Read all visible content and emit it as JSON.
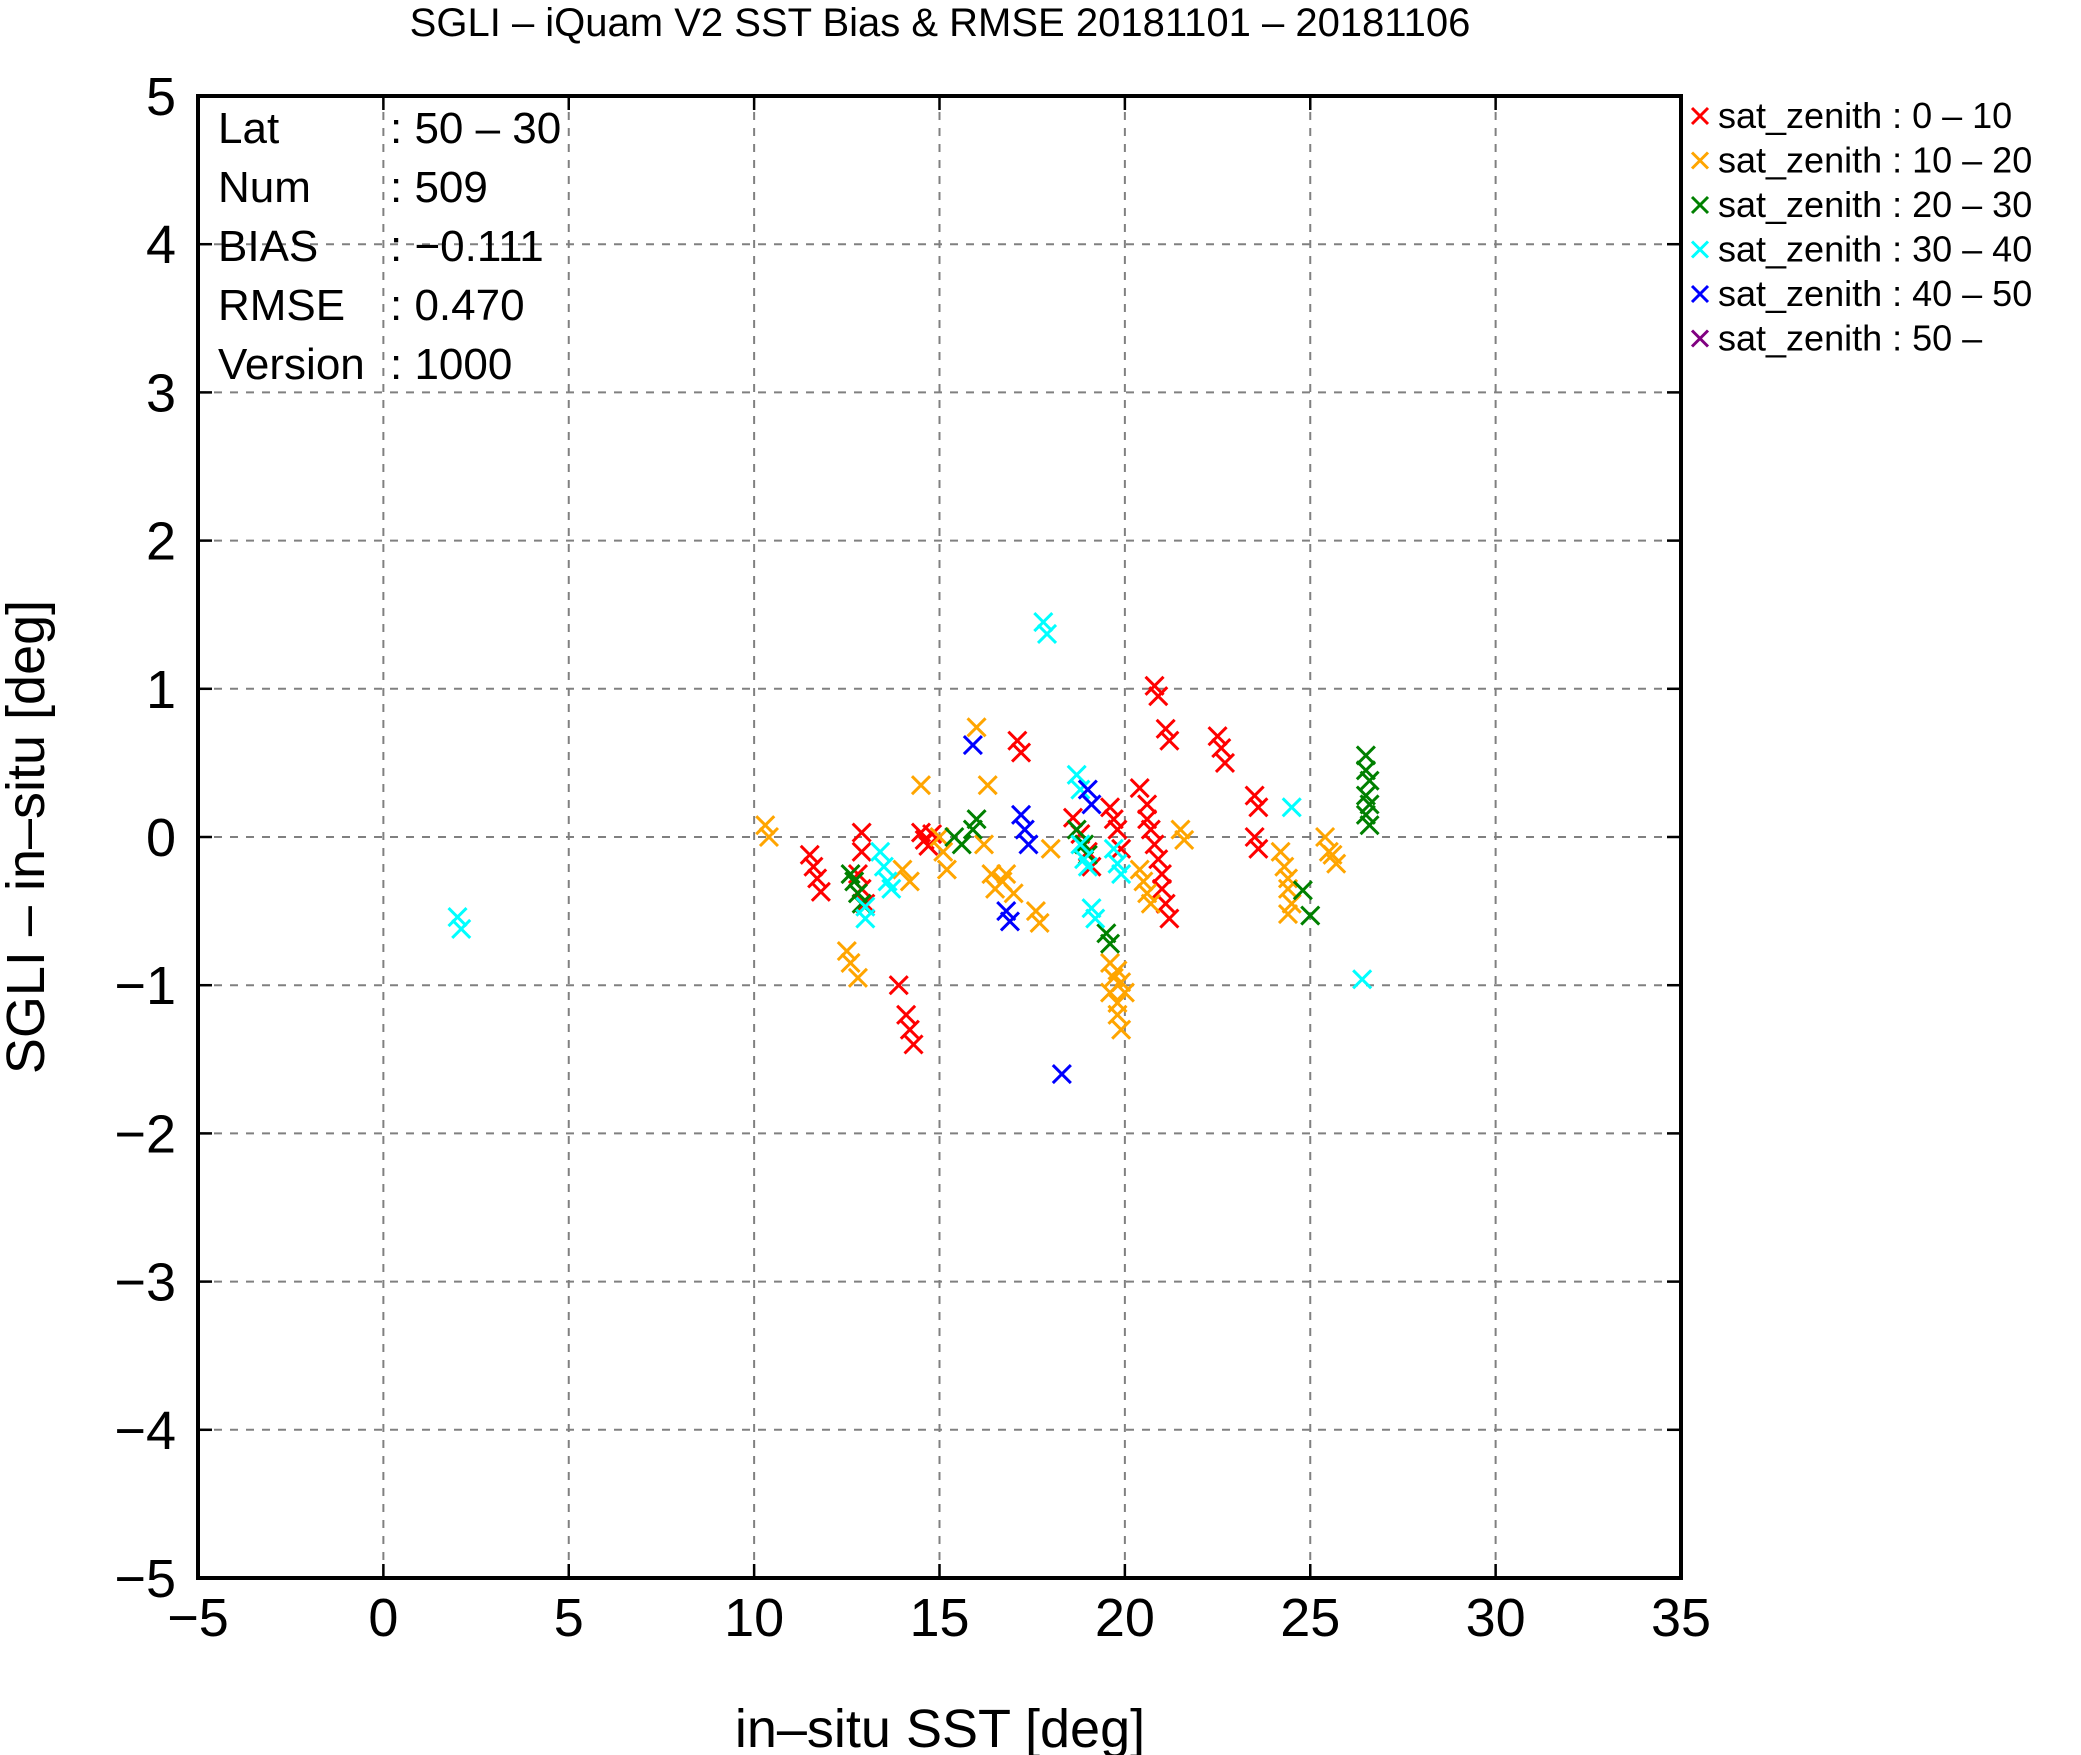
{
  "chart_data": {
    "type": "scatter",
    "title": "SGLI – iQuam V2 SST Bias & RMSE 20181101 – 20181106",
    "xlabel": "in–situ SST [deg]",
    "ylabel": "SGLI – in–situ [deg]",
    "xlim": [
      -5,
      35
    ],
    "ylim": [
      -5,
      5
    ],
    "xticks": [
      -5,
      0,
      5,
      10,
      15,
      20,
      25,
      30,
      35
    ],
    "xtick_labels": [
      "−5",
      "0",
      "5",
      "10",
      "15",
      "20",
      "25",
      "30",
      "35"
    ],
    "yticks": [
      5,
      4,
      3,
      2,
      1,
      0,
      -1,
      -2,
      -3,
      -4,
      -5
    ],
    "ytick_labels": [
      "5",
      "4",
      "3",
      "2",
      "1",
      "0",
      "−1",
      "−2",
      "−3",
      "−4",
      "−5"
    ],
    "grid": true,
    "legend_position": "outside-top-right",
    "marker": "x",
    "stats": [
      {
        "label": "Lat",
        "value": ": 50 – 30"
      },
      {
        "label": "Num",
        "value": ": 509"
      },
      {
        "label": "BIAS",
        "value": ": −0.111"
      },
      {
        "label": "RMSE",
        "value": ": 0.470"
      },
      {
        "label": "Version",
        "value": ": 1000"
      }
    ],
    "series": [
      {
        "name": "sat_zenith :  0 – 10",
        "color": "#ff0000",
        "points": [
          [
            11.5,
            -0.12
          ],
          [
            11.6,
            -0.2
          ],
          [
            11.7,
            -0.28
          ],
          [
            11.8,
            -0.37
          ],
          [
            12.9,
            0.03
          ],
          [
            12.9,
            -0.1
          ],
          [
            12.8,
            -0.25
          ],
          [
            12.9,
            -0.35
          ],
          [
            13.0,
            -0.45
          ],
          [
            13.9,
            -1.0
          ],
          [
            14.1,
            -1.2
          ],
          [
            14.2,
            -1.3
          ],
          [
            14.3,
            -1.4
          ],
          [
            14.5,
            0.03
          ],
          [
            14.6,
            -0.02
          ],
          [
            14.7,
            -0.06
          ],
          [
            14.8,
            0.02
          ],
          [
            17.1,
            0.65
          ],
          [
            17.2,
            0.57
          ],
          [
            18.6,
            0.13
          ],
          [
            18.8,
            0.02
          ],
          [
            19.0,
            -0.1
          ],
          [
            19.1,
            -0.2
          ],
          [
            19.6,
            0.2
          ],
          [
            19.7,
            0.12
          ],
          [
            19.8,
            0.05
          ],
          [
            19.9,
            -0.08
          ],
          [
            20.4,
            0.33
          ],
          [
            20.6,
            0.22
          ],
          [
            20.6,
            0.12
          ],
          [
            20.7,
            0.05
          ],
          [
            20.8,
            1.02
          ],
          [
            20.9,
            0.95
          ],
          [
            21.1,
            0.73
          ],
          [
            21.2,
            0.65
          ],
          [
            20.8,
            -0.05
          ],
          [
            20.9,
            -0.15
          ],
          [
            21.0,
            -0.25
          ],
          [
            21.0,
            -0.35
          ],
          [
            21.1,
            -0.45
          ],
          [
            21.2,
            -0.55
          ],
          [
            22.5,
            0.68
          ],
          [
            22.6,
            0.6
          ],
          [
            22.7,
            0.5
          ],
          [
            23.5,
            0.28
          ],
          [
            23.6,
            0.2
          ],
          [
            23.5,
            0.0
          ],
          [
            23.6,
            -0.08
          ]
        ]
      },
      {
        "name": "sat_zenith : 10 – 20",
        "color": "#ffa500",
        "points": [
          [
            10.3,
            0.08
          ],
          [
            10.4,
            0.0
          ],
          [
            12.5,
            -0.77
          ],
          [
            12.6,
            -0.85
          ],
          [
            12.8,
            -0.95
          ],
          [
            14.0,
            -0.22
          ],
          [
            14.2,
            -0.3
          ],
          [
            14.5,
            0.35
          ],
          [
            15.0,
            0.0
          ],
          [
            15.1,
            -0.1
          ],
          [
            15.2,
            -0.22
          ],
          [
            16.0,
            0.74
          ],
          [
            16.2,
            -0.05
          ],
          [
            16.3,
            0.35
          ],
          [
            16.4,
            -0.25
          ],
          [
            16.5,
            -0.35
          ],
          [
            16.7,
            -0.3
          ],
          [
            16.8,
            -0.25
          ],
          [
            17.0,
            -0.38
          ],
          [
            17.6,
            -0.5
          ],
          [
            17.7,
            -0.58
          ],
          [
            18.0,
            -0.08
          ],
          [
            19.6,
            -0.85
          ],
          [
            19.7,
            -0.95
          ],
          [
            19.6,
            -1.05
          ],
          [
            19.8,
            -1.12
          ],
          [
            19.8,
            -1.2
          ],
          [
            19.9,
            -1.3
          ],
          [
            19.9,
            -0.98
          ],
          [
            20.0,
            -1.05
          ],
          [
            19.8,
            -0.9
          ],
          [
            20.4,
            -0.22
          ],
          [
            20.5,
            -0.3
          ],
          [
            20.6,
            -0.38
          ],
          [
            20.7,
            -0.45
          ],
          [
            21.5,
            0.05
          ],
          [
            21.6,
            -0.02
          ],
          [
            24.2,
            -0.1
          ],
          [
            24.3,
            -0.2
          ],
          [
            24.4,
            -0.28
          ],
          [
            24.4,
            -0.35
          ],
          [
            24.5,
            -0.45
          ],
          [
            24.4,
            -0.52
          ],
          [
            25.4,
            0.0
          ],
          [
            25.5,
            -0.1
          ],
          [
            25.6,
            -0.12
          ],
          [
            25.7,
            -0.18
          ]
        ]
      },
      {
        "name": "sat_zenith : 20 – 30",
        "color": "#008000",
        "points": [
          [
            12.6,
            -0.25
          ],
          [
            12.7,
            -0.3
          ],
          [
            12.8,
            -0.38
          ],
          [
            12.9,
            -0.45
          ],
          [
            15.4,
            0.0
          ],
          [
            15.6,
            -0.05
          ],
          [
            15.9,
            0.05
          ],
          [
            16.0,
            0.12
          ],
          [
            18.7,
            0.05
          ],
          [
            18.9,
            -0.05
          ],
          [
            19.0,
            -0.12
          ],
          [
            19.5,
            -0.65
          ],
          [
            19.6,
            -0.72
          ],
          [
            24.8,
            -0.36
          ],
          [
            25.0,
            -0.53
          ],
          [
            26.5,
            0.55
          ],
          [
            26.5,
            0.45
          ],
          [
            26.6,
            0.38
          ],
          [
            26.5,
            0.28
          ],
          [
            26.6,
            0.22
          ],
          [
            26.5,
            0.15
          ],
          [
            26.6,
            0.08
          ]
        ]
      },
      {
        "name": "sat_zenith : 30 – 40",
        "color": "#00ffff",
        "points": [
          [
            2.0,
            -0.54
          ],
          [
            2.1,
            -0.62
          ],
          [
            13.0,
            -0.47
          ],
          [
            13.0,
            -0.55
          ],
          [
            13.4,
            -0.1
          ],
          [
            13.5,
            -0.2
          ],
          [
            13.6,
            -0.3
          ],
          [
            13.7,
            -0.35
          ],
          [
            17.8,
            1.45
          ],
          [
            17.9,
            1.37
          ],
          [
            18.7,
            0.42
          ],
          [
            18.8,
            0.32
          ],
          [
            18.8,
            -0.05
          ],
          [
            18.9,
            -0.15
          ],
          [
            19.0,
            -0.2
          ],
          [
            19.1,
            -0.48
          ],
          [
            19.2,
            -0.55
          ],
          [
            19.7,
            -0.08
          ],
          [
            19.8,
            -0.18
          ],
          [
            19.9,
            -0.25
          ],
          [
            24.5,
            0.2
          ],
          [
            26.4,
            -0.96
          ]
        ]
      },
      {
        "name": "sat_zenith : 40 – 50",
        "color": "#0000ff",
        "points": [
          [
            15.9,
            0.62
          ],
          [
            16.8,
            -0.5
          ],
          [
            16.9,
            -0.57
          ],
          [
            17.2,
            0.15
          ],
          [
            17.3,
            0.05
          ],
          [
            17.4,
            -0.05
          ],
          [
            18.3,
            -1.6
          ],
          [
            19.0,
            0.32
          ],
          [
            19.1,
            0.22
          ]
        ]
      },
      {
        "name": "sat_zenith : 50 –",
        "color": "#800080",
        "points": []
      }
    ]
  }
}
